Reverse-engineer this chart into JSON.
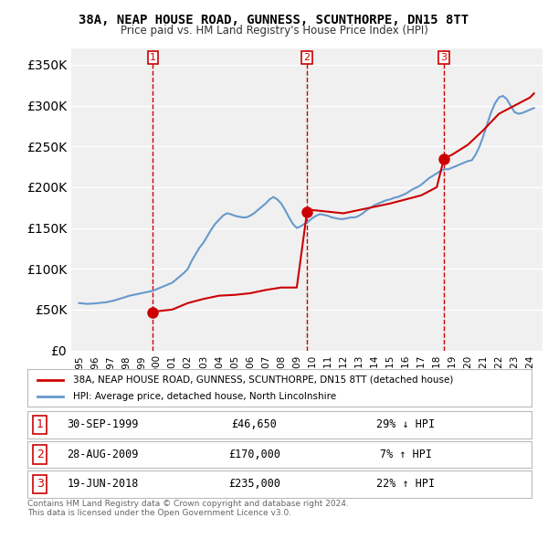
{
  "title": "38A, NEAP HOUSE ROAD, GUNNESS, SCUNTHORPE, DN15 8TT",
  "subtitle": "Price paid vs. HM Land Registry's House Price Index (HPI)",
  "ylabel": "",
  "ylim": [
    0,
    370000
  ],
  "yticks": [
    0,
    50000,
    100000,
    150000,
    200000,
    250000,
    300000,
    350000
  ],
  "ytick_labels": [
    "£0",
    "£50K",
    "£100K",
    "£150K",
    "£200K",
    "£250K",
    "£300K",
    "£350K"
  ],
  "background_color": "#ffffff",
  "plot_bg_color": "#f0f0f0",
  "grid_color": "#ffffff",
  "sale_color": "#cc0000",
  "hpi_color": "#6699cc",
  "sale_points": [
    {
      "date": 1999.75,
      "price": 46650,
      "label": "1"
    },
    {
      "date": 2009.66,
      "price": 170000,
      "label": "2"
    },
    {
      "date": 2018.46,
      "price": 235000,
      "label": "3"
    }
  ],
  "vline_dates": [
    1999.75,
    2009.66,
    2018.46
  ],
  "legend_sale_label": "38A, NEAP HOUSE ROAD, GUNNESS, SCUNTHORPE, DN15 8TT (detached house)",
  "legend_hpi_label": "HPI: Average price, detached house, North Lincolnshire",
  "table_rows": [
    {
      "num": "1",
      "date": "30-SEP-1999",
      "price": "£46,650",
      "change": "29% ↓ HPI"
    },
    {
      "num": "2",
      "date": "28-AUG-2009",
      "price": "£170,000",
      "change": "7% ↑ HPI"
    },
    {
      "num": "3",
      "date": "19-JUN-2018",
      "price": "£235,000",
      "change": "22% ↑ HPI"
    }
  ],
  "footnote": "Contains HM Land Registry data © Crown copyright and database right 2024.\nThis data is licensed under the Open Government Licence v3.0.",
  "hpi_data": {
    "years": [
      1995.0,
      1995.25,
      1995.5,
      1995.75,
      1996.0,
      1996.25,
      1996.5,
      1996.75,
      1997.0,
      1997.25,
      1997.5,
      1997.75,
      1998.0,
      1998.25,
      1998.5,
      1998.75,
      1999.0,
      1999.25,
      1999.5,
      1999.75,
      2000.0,
      2000.25,
      2000.5,
      2000.75,
      2001.0,
      2001.25,
      2001.5,
      2001.75,
      2002.0,
      2002.25,
      2002.5,
      2002.75,
      2003.0,
      2003.25,
      2003.5,
      2003.75,
      2004.0,
      2004.25,
      2004.5,
      2004.75,
      2005.0,
      2005.25,
      2005.5,
      2005.75,
      2006.0,
      2006.25,
      2006.5,
      2006.75,
      2007.0,
      2007.25,
      2007.5,
      2007.75,
      2008.0,
      2008.25,
      2008.5,
      2008.75,
      2009.0,
      2009.25,
      2009.5,
      2009.75,
      2010.0,
      2010.25,
      2010.5,
      2010.75,
      2011.0,
      2011.25,
      2011.5,
      2011.75,
      2012.0,
      2012.25,
      2012.5,
      2012.75,
      2013.0,
      2013.25,
      2013.5,
      2013.75,
      2014.0,
      2014.25,
      2014.5,
      2014.75,
      2015.0,
      2015.25,
      2015.5,
      2015.75,
      2016.0,
      2016.25,
      2016.5,
      2016.75,
      2017.0,
      2017.25,
      2017.5,
      2017.75,
      2018.0,
      2018.25,
      2018.5,
      2018.75,
      2019.0,
      2019.25,
      2019.5,
      2019.75,
      2020.0,
      2020.25,
      2020.5,
      2020.75,
      2021.0,
      2021.25,
      2021.5,
      2021.75,
      2022.0,
      2022.25,
      2022.5,
      2022.75,
      2023.0,
      2023.25,
      2023.5,
      2023.75,
      2024.0,
      2024.25
    ],
    "values": [
      58000,
      57500,
      57000,
      57200,
      57500,
      58000,
      58500,
      59000,
      60000,
      61000,
      62500,
      64000,
      65500,
      67000,
      68000,
      69000,
      70000,
      71000,
      72000,
      73000,
      75000,
      77000,
      79000,
      81000,
      83000,
      87000,
      91000,
      95000,
      100000,
      110000,
      118000,
      126000,
      132000,
      140000,
      148000,
      155000,
      160000,
      165000,
      168000,
      167000,
      165000,
      164000,
      163000,
      163000,
      165000,
      168000,
      172000,
      176000,
      180000,
      185000,
      188000,
      185000,
      180000,
      172000,
      163000,
      155000,
      150000,
      152000,
      155000,
      158000,
      162000,
      165000,
      167000,
      166000,
      165000,
      163000,
      162000,
      161000,
      161000,
      162000,
      163000,
      163000,
      165000,
      168000,
      172000,
      175000,
      178000,
      180000,
      182000,
      184000,
      185000,
      187000,
      188000,
      190000,
      192000,
      195000,
      198000,
      200000,
      203000,
      207000,
      211000,
      214000,
      217000,
      220000,
      222000,
      222000,
      224000,
      226000,
      228000,
      230000,
      232000,
      233000,
      240000,
      250000,
      263000,
      278000,
      292000,
      303000,
      310000,
      312000,
      308000,
      300000,
      292000,
      290000,
      291000,
      293000,
      295000,
      297000
    ]
  },
  "sale_line_data": {
    "years": [
      1999.75,
      2000.0,
      2001.0,
      2002.0,
      2003.0,
      2004.0,
      2005.0,
      2006.0,
      2007.0,
      2008.0,
      2009.0,
      2009.66,
      2009.66,
      2010.0,
      2011.0,
      2012.0,
      2013.0,
      2014.0,
      2015.0,
      2016.0,
      2017.0,
      2018.0,
      2018.46,
      2018.46,
      2019.0,
      2020.0,
      2021.0,
      2022.0,
      2023.0,
      2024.0,
      2024.25
    ],
    "values": [
      46650,
      47900,
      50000,
      58000,
      63000,
      67000,
      68000,
      70000,
      74000,
      77000,
      77000,
      170000,
      170000,
      172000,
      170000,
      168000,
      172000,
      176000,
      180000,
      185000,
      190000,
      200000,
      235000,
      235000,
      240000,
      252000,
      270000,
      290000,
      300000,
      310000,
      315000
    ]
  }
}
